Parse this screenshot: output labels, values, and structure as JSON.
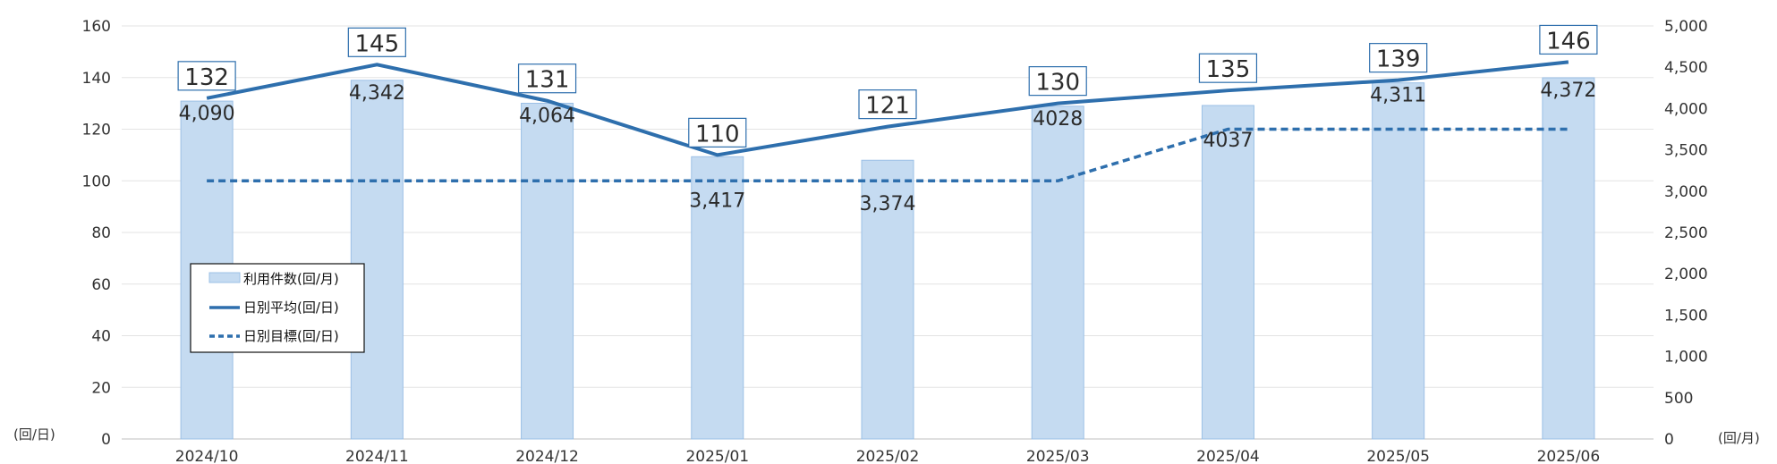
{
  "chart_data": {
    "type": "bar",
    "categories": [
      "2024/10",
      "2024/11",
      "2024/12",
      "2025/01",
      "2025/02",
      "2025/03",
      "2025/04",
      "2025/05",
      "2025/06"
    ],
    "series": [
      {
        "name": "利用件数(回/月)",
        "type": "bar",
        "axis": "right",
        "color": "#c5dbf1",
        "values": [
          4090,
          4342,
          4064,
          3417,
          3374,
          4028,
          4037,
          4311,
          4372
        ],
        "labels": [
          "4,090",
          "4,342",
          "4,064",
          "3,417",
          "3,374",
          "4028",
          "4037",
          "4,311",
          "4,372"
        ]
      },
      {
        "name": "日別平均(回/日)",
        "type": "line",
        "axis": "left",
        "color": "#2e6fad",
        "values": [
          132,
          145,
          131,
          110,
          121,
          130,
          135,
          139,
          146
        ]
      },
      {
        "name": "日別目標(回/日)",
        "type": "line",
        "style": "dashed",
        "axis": "left",
        "color": "#2e6fad",
        "values": [
          100,
          100,
          100,
          100,
          100,
          100,
          120,
          120,
          120
        ]
      }
    ],
    "left_axis": {
      "unit": "(回/日)",
      "ylim": [
        0,
        160
      ],
      "ticks": [
        "0",
        "20",
        "40",
        "60",
        "80",
        "100",
        "120",
        "140",
        "160"
      ]
    },
    "right_axis": {
      "unit": "(回/月)",
      "ylim": [
        0,
        5000
      ],
      "ticks": [
        "0",
        "500",
        "1,000",
        "1,500",
        "2,000",
        "2,500",
        "3,000",
        "3,500",
        "4,000",
        "4,500",
        "5,000"
      ]
    },
    "grid": true,
    "legend": "inside-left"
  }
}
